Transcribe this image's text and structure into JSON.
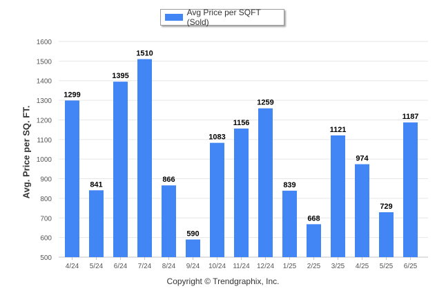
{
  "legend": {
    "label": "Avg Price per SQFT (Sold)"
  },
  "footer": {
    "copyright": "Copyright © Trendgraphix, Inc."
  },
  "colors": {
    "bar": "#4285f4",
    "grid": "#e6e6e6",
    "axis_text": "#555555",
    "value_text": "#000000"
  },
  "chart_data": {
    "type": "bar",
    "title": "",
    "xlabel": "",
    "ylabel": "Avg. Price per SQ. FT.",
    "categories": [
      "4/24",
      "5/24",
      "6/24",
      "7/24",
      "8/24",
      "9/24",
      "10/24",
      "11/24",
      "12/24",
      "1/25",
      "2/25",
      "3/25",
      "4/25",
      "5/25",
      "6/25"
    ],
    "series": [
      {
        "name": "Avg Price per SQFT (Sold)",
        "values": [
          1299,
          841,
          1395,
          1510,
          866,
          590,
          1083,
          1156,
          1259,
          839,
          668,
          1121,
          974,
          729,
          1187
        ]
      }
    ],
    "ylim": [
      500,
      1600
    ],
    "yticks": [
      500,
      600,
      700,
      800,
      900,
      1000,
      1100,
      1200,
      1300,
      1400,
      1500,
      1600
    ],
    "grid": true,
    "legend_position": "top-center",
    "data_labels": true
  }
}
